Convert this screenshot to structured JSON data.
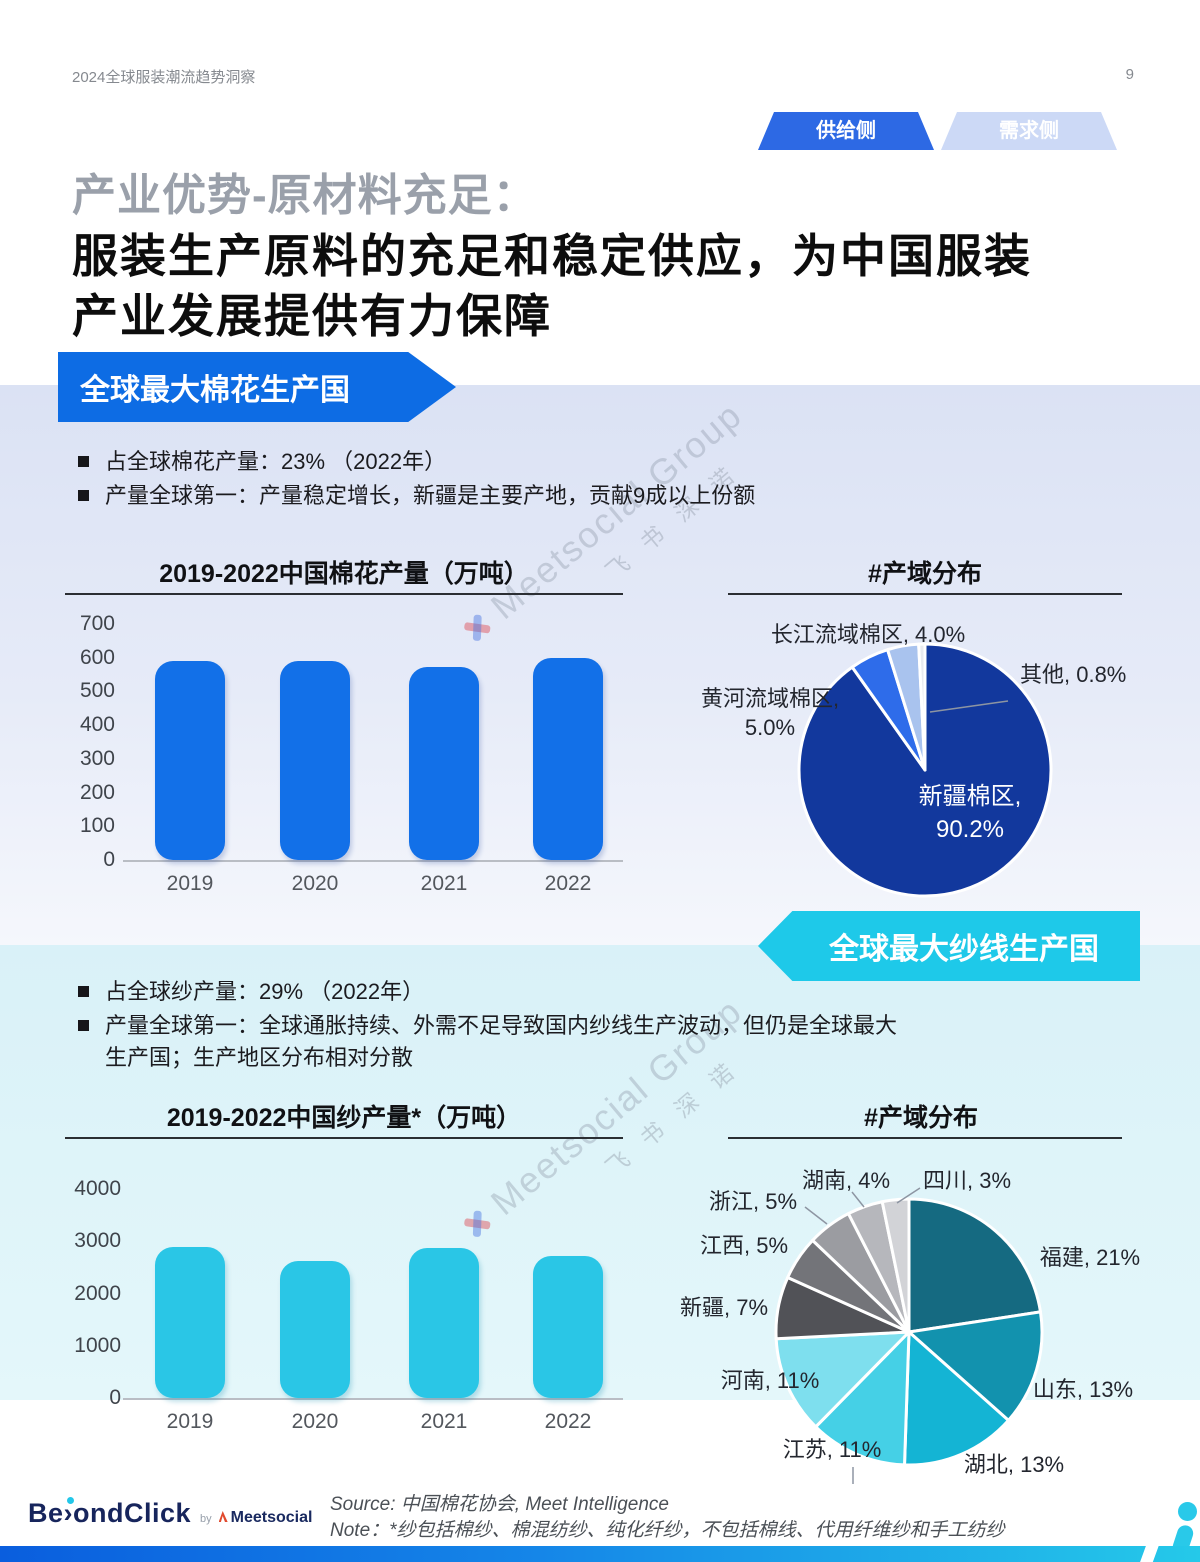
{
  "header": {
    "doc_title": "2024全球服装潮流趋势洞察",
    "page_number": "9"
  },
  "tabs": [
    {
      "label": "供给侧",
      "active": true
    },
    {
      "label": "需求侧",
      "active": false
    }
  ],
  "title": {
    "line1": "产业优势-原材料充足：",
    "line2": "服装生产原料的充足和稳定供应，为中国服装",
    "line3": "产业发展提供有力保障"
  },
  "cotton_section": {
    "banner": "全球最大棉花生产国",
    "bullets": [
      "占全球棉花产量：23% （2022年）",
      "产量全球第一：产量稳定增长，新疆是主要产地，贡献9成以上份额"
    ]
  },
  "yarn_section": {
    "banner": "全球最大纱线生产国",
    "bullets": [
      "占全球纱产量：29% （2022年）",
      "产量全球第一：全球通胀持续、外需不足导致国内纱线生产波动，但仍是全球最大\n生产国；生产地区分布相对分散"
    ]
  },
  "chart_data": [
    {
      "type": "bar",
      "title": "2019-2022中国棉花产量（万吨）",
      "categories": [
        "2019",
        "2020",
        "2021",
        "2022"
      ],
      "values": [
        589,
        591,
        573,
        598
      ],
      "ylabel": "万吨",
      "ylim": [
        0,
        700
      ],
      "yticks": [
        0,
        100,
        200,
        300,
        400,
        500,
        600,
        700
      ],
      "bar_color": "#1270e8",
      "grid": false,
      "legend": "none"
    },
    {
      "type": "pie",
      "title": "#产域分布",
      "slices": [
        {
          "label": "新疆棉区",
          "value": 90.2,
          "display": "新疆棉区,\n90.2%",
          "color": "#12389d"
        },
        {
          "label": "黄河流域棉区",
          "value": 5.0,
          "display": "黄河流域棉区,\n5.0%",
          "color": "#2e6cea"
        },
        {
          "label": "长江流域棉区",
          "value": 4.0,
          "display": "长江流域棉区, 4.0%",
          "color": "#a9c3ee"
        },
        {
          "label": "其他",
          "value": 0.8,
          "display": "其他, 0.8%",
          "color": "#e9ebef"
        }
      ],
      "start_angle_deg": 0,
      "direction": "clockwise",
      "legend": "none"
    },
    {
      "type": "bar",
      "title": "2019-2022中国纱产量*（万吨）",
      "categories": [
        "2019",
        "2020",
        "2021",
        "2022"
      ],
      "values": [
        2892,
        2618,
        2873,
        2719
      ],
      "ylabel": "万吨",
      "ylim": [
        0,
        4000
      ],
      "yticks": [
        0,
        1000,
        2000,
        3000,
        4000
      ],
      "bar_color": "#2ac6e6",
      "grid": false,
      "legend": "none"
    },
    {
      "type": "pie",
      "title": "#产域分布",
      "slices": [
        {
          "label": "福建",
          "value": 21,
          "display": "福建, 21%",
          "color": "#156a81"
        },
        {
          "label": "山东",
          "value": 13,
          "display": "山东, 13%",
          "color": "#1292ae"
        },
        {
          "label": "湖北",
          "value": 13,
          "display": "湖北, 13%",
          "color": "#14b4d4"
        },
        {
          "label": "江苏",
          "value": 11,
          "display": "江苏, 11%",
          "color": "#45d0e6"
        },
        {
          "label": "河南",
          "value": 11,
          "display": "河南, 11%",
          "color": "#7edfee"
        },
        {
          "label": "新疆",
          "value": 7,
          "display": "新疆, 7%",
          "color": "#515257"
        },
        {
          "label": "江西",
          "value": 5,
          "display": "江西, 5%",
          "color": "#737479"
        },
        {
          "label": "浙江",
          "value": 5,
          "display": "浙江, 5%",
          "color": "#9b9ca1"
        },
        {
          "label": "湖南",
          "value": 4,
          "display": "湖南, 4%",
          "color": "#b6b7bc"
        },
        {
          "label": "四川",
          "value": 3,
          "display": "四川, 3%",
          "color": "#d2d3d7"
        }
      ],
      "start_angle_deg": 0,
      "direction": "clockwise",
      "legend": "none"
    }
  ],
  "watermark": {
    "text": "Meetsocial Group",
    "sub": "飞书深诺"
  },
  "footer": {
    "logo": {
      "part1": "Be",
      "chev": "›",
      "part2": "ondClick",
      "by": "by",
      "brand": "Meetsocial"
    },
    "source_line": "Source: 中国棉花协会, Meet Intelligence",
    "note_line": "Note：*纱包括棉纱、棉混纺纱、纯化纤纱，不包括棉线、代用纤维纱和手工纺纱"
  },
  "colors": {
    "accent_blue": "#0d6ce4",
    "accent_cyan": "#1ec9e9",
    "tab_active": "#2d69e4",
    "tab_inactive": "#ccd9f6"
  }
}
